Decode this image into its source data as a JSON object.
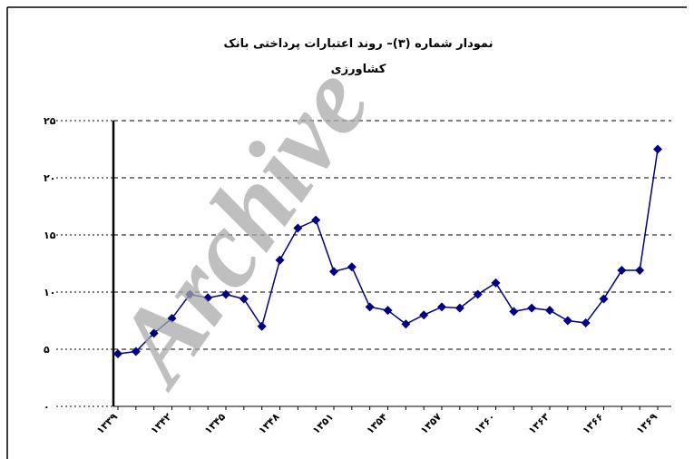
{
  "chart_data": {
    "type": "line",
    "title": "نمودار شماره (۳)– روند اعتبارات پرداختی بانک",
    "subtitle": "کشاورزی",
    "watermark": "Archive",
    "categories": [
      "۱۳۳۹",
      null,
      null,
      "۱۳۴۲",
      null,
      null,
      "۱۳۴۵",
      null,
      null,
      "۱۳۴۸",
      null,
      null,
      "۱۳۵۱",
      null,
      null,
      "۱۳۵۴",
      null,
      null,
      "۱۳۵۷",
      null,
      null,
      "۱۳۶۰",
      null,
      null,
      "۱۳۶۳",
      null,
      null,
      "۱۳۶۶",
      null,
      null,
      "۱۳۶۹"
    ],
    "series": [
      {
        "color": "#000080",
        "values": [
          4.6,
          4.8,
          6.4,
          7.7,
          9.8,
          9.5,
          9.8,
          9.4,
          7.0,
          12.8,
          15.6,
          16.3,
          11.8,
          12.2,
          8.7,
          8.4,
          7.2,
          8.0,
          8.7,
          8.6,
          9.8,
          10.8,
          8.3,
          8.6,
          8.4,
          7.5,
          7.3,
          9.4,
          11.9,
          11.9,
          22.5
        ]
      }
    ],
    "ylim": [
      0,
      25
    ],
    "yticks": [
      {
        "value": 0,
        "label": "۰"
      },
      {
        "value": 5,
        "label": "۵"
      },
      {
        "value": 10,
        "label": "۱۰"
      },
      {
        "value": 15,
        "label": "۱۵"
      },
      {
        "value": 20,
        "label": "۲۰"
      },
      {
        "value": 25,
        "label": "۲۵"
      }
    ],
    "grid": true
  }
}
